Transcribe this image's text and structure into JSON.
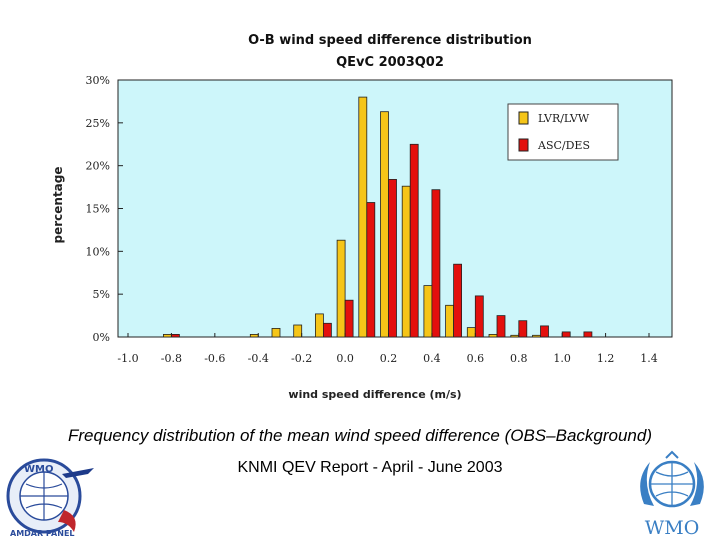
{
  "chart_data": {
    "type": "bar",
    "title": "O-B wind speed difference distribution",
    "subtitle": "QEvC 2003Q02",
    "xlabel": "wind speed difference (m/s)",
    "ylabel": "percentage",
    "ylim": [
      0,
      30
    ],
    "xlim": [
      -1.0,
      1.4
    ],
    "yticks": [
      "0%",
      "5%",
      "10%",
      "15%",
      "20%",
      "25%",
      "30%"
    ],
    "ytick_values": [
      0,
      5,
      10,
      15,
      20,
      25,
      30
    ],
    "xticks": [
      "-1.0",
      "-0.8",
      "-0.6",
      "-0.4",
      "-0.2",
      "0.0",
      "0.2",
      "0.4",
      "0.6",
      "0.8",
      "1.0",
      "1.2",
      "1.4"
    ],
    "xtick_values": [
      -1.0,
      -0.8,
      -0.6,
      -0.4,
      -0.2,
      0.0,
      0.2,
      0.4,
      0.6,
      0.8,
      1.0,
      1.2,
      1.4
    ],
    "legend_position": "top-right",
    "grid": false,
    "x": [
      -0.8,
      -0.4,
      -0.3,
      -0.2,
      -0.1,
      0.0,
      0.1,
      0.2,
      0.3,
      0.4,
      0.5,
      0.6,
      0.7,
      0.8,
      0.9,
      1.0,
      1.1
    ],
    "series": [
      {
        "name": "LVR/LVW",
        "color": "#f5c518",
        "values": [
          0.3,
          0.3,
          1.0,
          1.4,
          2.7,
          11.3,
          28.0,
          26.3,
          17.6,
          6.0,
          3.7,
          1.1,
          0.3,
          0.2,
          0.2,
          0.0,
          0.0
        ]
      },
      {
        "name": "ASC/DES",
        "color": "#e3100d",
        "values": [
          0.3,
          0.0,
          0.0,
          0.0,
          1.6,
          4.3,
          15.7,
          18.4,
          22.5,
          17.2,
          8.5,
          4.8,
          2.5,
          1.9,
          1.3,
          0.6,
          0.6
        ]
      }
    ]
  },
  "footer": {
    "caption": "Frequency distribution of the mean wind speed difference (OBS–Background)",
    "report": "KNMI QEV Report - April - June 2003",
    "left_logo_text_top": "WMO",
    "left_logo_text_bottom": "AMDAR PANEL",
    "right_logo_text": "WMO"
  }
}
